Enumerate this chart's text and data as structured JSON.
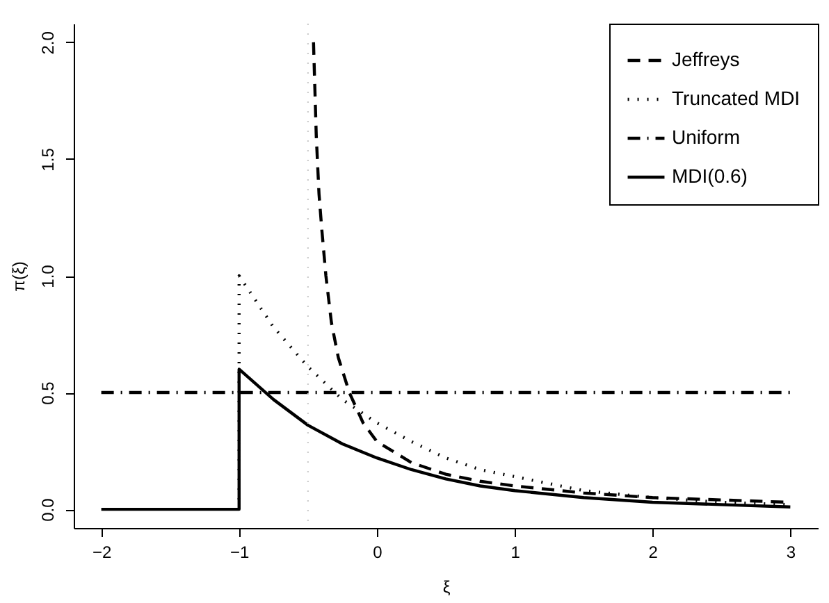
{
  "chart_data": {
    "type": "line",
    "xlabel": "ξ",
    "ylabel": "π(ξ)",
    "xlim": [
      -2.2,
      3.2
    ],
    "ylim": [
      -0.08,
      2.08
    ],
    "xticks": [
      -2,
      -1,
      0,
      1,
      2,
      3
    ],
    "yticks": [
      {
        "value": 0,
        "label": "0.0"
      },
      0.5,
      {
        "value": 1,
        "label": "1.0"
      },
      1.5,
      {
        "value": 2,
        "label": "2.0"
      }
    ],
    "grid": false,
    "legend": "top right",
    "marker": "none",
    "series": [
      {
        "name": "Jeffreys",
        "color": "#000000",
        "line_style": "dashed",
        "x": [
          -0.46,
          -0.44,
          -0.42,
          -0.4,
          -0.37,
          -0.33,
          -0.28,
          -0.2,
          -0.1,
          0,
          0.25,
          0.5,
          0.75,
          1,
          1.5,
          2,
          2.5,
          3
        ],
        "values": [
          2.0,
          1.6,
          1.35,
          1.2,
          1.0,
          0.8,
          0.65,
          0.5,
          0.37,
          0.29,
          0.2,
          0.15,
          0.12,
          0.1,
          0.07,
          0.05,
          0.04,
          0.03
        ]
      },
      {
        "name": "Truncated MDI",
        "color": "#000000",
        "line_style": "dotted",
        "x": [
          -1,
          -1,
          -0.75,
          -0.5,
          -0.25,
          0,
          0.25,
          0.5,
          0.75,
          1,
          1.5,
          2,
          2.5,
          3
        ],
        "values": [
          0,
          1.0,
          0.78,
          0.61,
          0.47,
          0.37,
          0.29,
          0.22,
          0.17,
          0.14,
          0.08,
          0.05,
          0.03,
          0.02
        ]
      },
      {
        "name": "Uniform",
        "color": "#000000",
        "line_style": "dashdot",
        "x": [
          -2,
          3
        ],
        "values": [
          0.5,
          0.5
        ]
      },
      {
        "name": "MDI(0.6)",
        "color": "#000000",
        "line_style": "solid",
        "x": [
          -2,
          -1,
          -1,
          -0.75,
          -0.5,
          -0.25,
          0,
          0.25,
          0.5,
          0.75,
          1,
          1.5,
          2,
          2.5,
          3
        ],
        "values": [
          0,
          0,
          0.6,
          0.47,
          0.36,
          0.28,
          0.22,
          0.17,
          0.13,
          0.1,
          0.08,
          0.05,
          0.03,
          0.02,
          0.01
        ]
      }
    ],
    "ref_lines": [
      {
        "axis": "x",
        "value": -0.5,
        "color": "#c8c8c8",
        "line_style": "dotted"
      }
    ]
  }
}
